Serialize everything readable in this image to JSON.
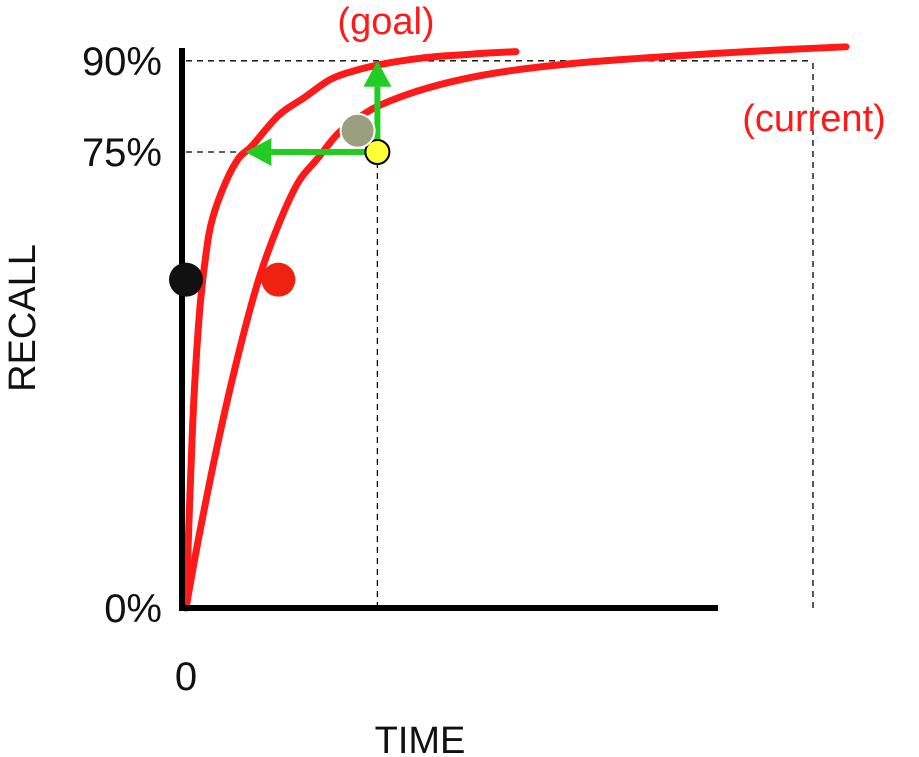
{
  "chart_data": {
    "type": "line",
    "xlabel": "TIME",
    "ylabel": "RECALL",
    "x_tick_labels": [
      "0"
    ],
    "y_tick_labels": [
      "0%",
      "75%",
      "90%"
    ],
    "y_ticks": [
      0,
      75,
      90
    ],
    "ylim": [
      0,
      100
    ],
    "xlim": [
      0,
      100
    ],
    "grid": false,
    "series": [
      {
        "name": "(goal)",
        "color": "#ff1a1a",
        "x": [
          0,
          1,
          2,
          3,
          4,
          6,
          8,
          10,
          14,
          18,
          22,
          26,
          30,
          34,
          38,
          42,
          46,
          50
        ],
        "y": [
          0,
          30,
          48,
          58,
          64,
          70,
          74,
          76,
          81,
          84,
          87,
          88.5,
          89.5,
          90.2,
          90.7,
          91,
          91.3,
          91.5
        ]
      },
      {
        "name": "(current)",
        "color": "#ff1a1a",
        "x": [
          0,
          2,
          5,
          8,
          11,
          14,
          17,
          20,
          23,
          26,
          29,
          35,
          42,
          50,
          60,
          70,
          80,
          90,
          100
        ],
        "y": [
          0,
          12,
          28,
          42,
          54,
          63,
          70,
          74,
          78,
          80.5,
          82.5,
          85,
          87,
          88.5,
          89.7,
          90.5,
          91.2,
          91.8,
          92.3
        ]
      }
    ],
    "reference_lines": [
      {
        "y": 90,
        "x_end": 95
      },
      {
        "y": 75,
        "x_end": 29
      },
      {
        "x": 29,
        "y_end": 75
      },
      {
        "x": 95,
        "y_end": 90
      }
    ],
    "arrows": [
      {
        "from_x": 29,
        "from_y": 75,
        "to_x": 29,
        "to_y": 90,
        "color": "#22cc22"
      },
      {
        "from_x": 29,
        "from_y": 75,
        "to_x": 9,
        "to_y": 75,
        "color": "#22cc22"
      }
    ],
    "markers": [
      {
        "x": 29,
        "y": 75,
        "color": "#ffff33"
      },
      {
        "x": 26,
        "y": 78.5,
        "color": "#9a9f80"
      },
      {
        "x": 0,
        "y": 54,
        "color": "#111111"
      },
      {
        "x": 14,
        "y": 54,
        "color": "#ee2211"
      }
    ]
  }
}
